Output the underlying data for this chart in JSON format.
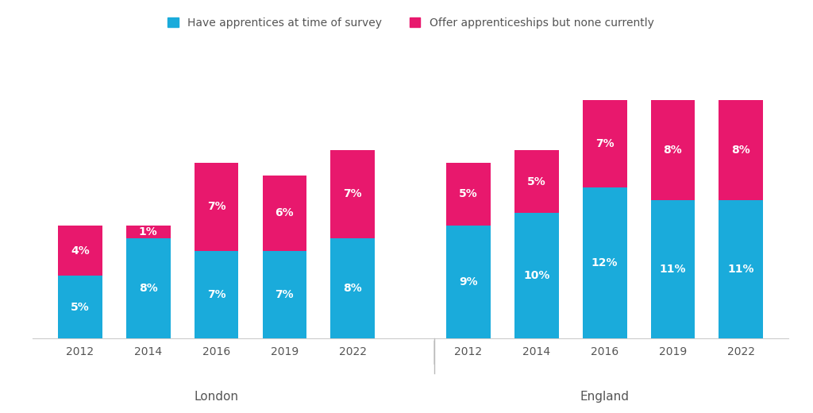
{
  "london_years": [
    "2012",
    "2014",
    "2016",
    "2019",
    "2022"
  ],
  "england_years": [
    "2012",
    "2014",
    "2016",
    "2019",
    "2022"
  ],
  "london_blue": [
    5,
    8,
    7,
    7,
    8
  ],
  "london_pink": [
    4,
    1,
    7,
    6,
    7
  ],
  "england_blue": [
    9,
    10,
    12,
    11,
    11
  ],
  "england_pink": [
    5,
    5,
    7,
    8,
    8
  ],
  "blue_color": "#1AABDB",
  "pink_color": "#E8186D",
  "legend_label_blue": "Have apprentices at time of survey",
  "legend_label_pink": "Offer apprenticeships but none currently",
  "london_label": "London",
  "england_label": "England",
  "background_color": "#ffffff",
  "bar_width": 0.65,
  "font_size_pct": 10,
  "font_size_axis": 10,
  "font_size_group": 11,
  "ylim_max": 23
}
